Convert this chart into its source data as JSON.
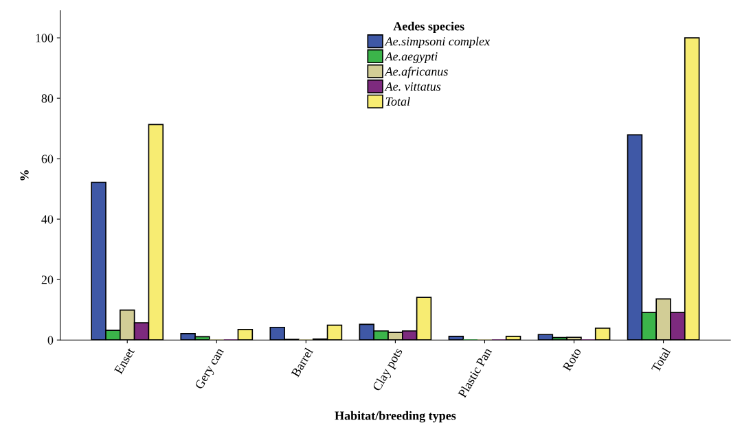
{
  "chart_data": {
    "type": "bar",
    "xlabel": "Habitat/breeding types",
    "ylabel": "%",
    "legend_title": "Aedes species",
    "categories": [
      "Enset",
      "Gery can",
      "Barrel",
      "Clay pots",
      "Plastic Pan",
      "Roto",
      "Total"
    ],
    "series": [
      {
        "name": "Ae.simpsoni complex",
        "color": "#3f58a6",
        "values": [
          52.2,
          2.1,
          4.2,
          5.2,
          1.2,
          1.8,
          67.9
        ]
      },
      {
        "name": "Ae.aegypti",
        "color": "#3bb44a",
        "values": [
          3.2,
          1.1,
          0.2,
          3.0,
          0,
          0.8,
          9.1
        ]
      },
      {
        "name": "Ae.africanus",
        "color": "#d2cd96",
        "values": [
          9.9,
          0,
          0,
          2.5,
          0,
          0.9,
          13.6
        ]
      },
      {
        "name": "Ae. vittatus",
        "color": "#7d2a7e",
        "values": [
          5.7,
          0,
          0.3,
          3.0,
          0,
          0,
          9.1
        ]
      },
      {
        "name": "Total",
        "color": "#f7ec72",
        "values": [
          71.3,
          3.5,
          4.9,
          14.1,
          1.2,
          3.9,
          100
        ]
      }
    ],
    "ylim": [
      0,
      109
    ],
    "yticks": [
      0,
      20,
      40,
      60,
      80,
      100
    ],
    "grid": false,
    "legend": "top"
  }
}
